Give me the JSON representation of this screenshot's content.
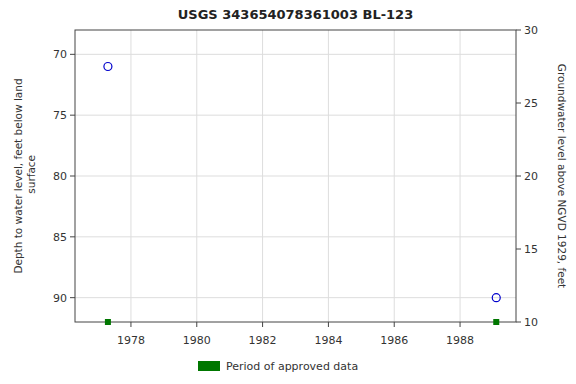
{
  "chart_data": {
    "type": "scatter",
    "title": "USGS 343654078361003 BL-123",
    "y_label": "Depth to water level, feet below land\n surface",
    "y2_label": "Groundwater level above NGVD 1929, feet",
    "series": [
      {
        "color": "#0000cc",
        "marker": "circle",
        "x": [
          1977.3,
          1989.1
        ],
        "values": [
          71.0,
          90.0
        ]
      },
      {
        "name": "Period of approved data",
        "color": "#007700",
        "marker": "square",
        "x": [
          1977.3,
          1989.1
        ]
      }
    ],
    "xlim": [
      1976.3,
      1989.7
    ],
    "xticks": [
      1978,
      1980,
      1982,
      1984,
      1986,
      1988
    ],
    "ylim": [
      92,
      68
    ],
    "yticks": [
      70,
      75,
      80,
      85,
      90
    ],
    "y2lim": [
      10,
      30
    ],
    "y2ticks": [
      10,
      15,
      20,
      25,
      30
    ],
    "grid": true,
    "legend": "bottom"
  }
}
